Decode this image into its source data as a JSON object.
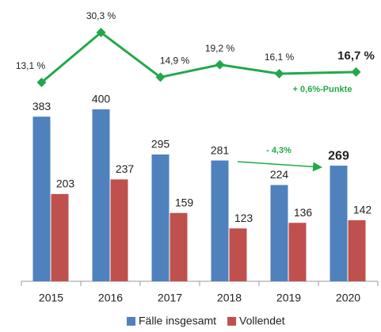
{
  "chart_data": {
    "type": "bar+line",
    "categories": [
      "2015",
      "2016",
      "2017",
      "2018",
      "2019",
      "2020"
    ],
    "series": [
      {
        "name": "Fälle insgesamt",
        "color": "#4f81bd",
        "values": [
          383,
          400,
          295,
          281,
          224,
          269
        ]
      },
      {
        "name": "Vollendet",
        "color": "#c0504d",
        "values": [
          203,
          237,
          159,
          123,
          136,
          142
        ]
      }
    ],
    "line": {
      "color": "#22a84a",
      "values": [
        13.1,
        30.3,
        14.9,
        19.2,
        16.1,
        16.7
      ],
      "value_labels": [
        "13,1 %",
        "30,3 %",
        "14,9 %",
        "19,2 %",
        "16,1 %",
        "16,7 %"
      ]
    },
    "annotations": [
      "+ 0,6%-Punkte",
      "- 4,3%"
    ]
  }
}
